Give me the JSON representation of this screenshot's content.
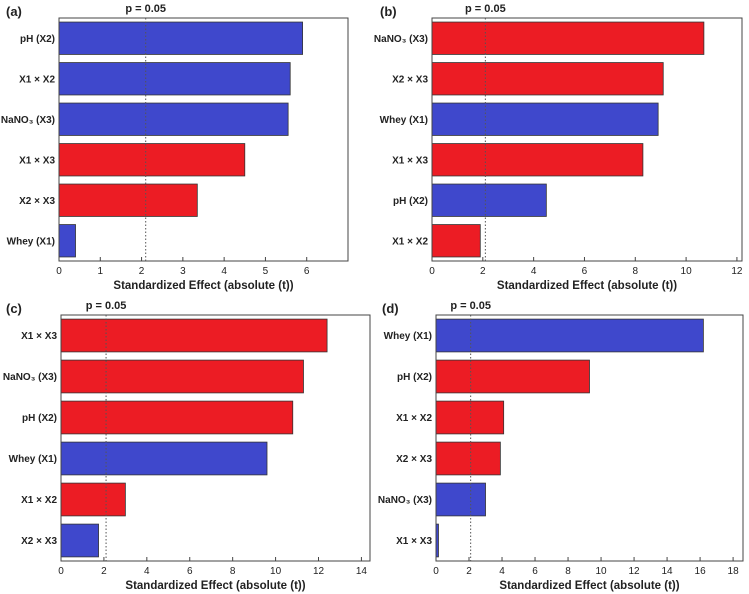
{
  "chart_data": [
    {
      "type": "bar",
      "orientation": "horizontal",
      "panel_label": "(a)",
      "categories": [
        "pH (X2)",
        "X1 × X2",
        "NaNO₃ (X3)",
        "X1 × X3",
        "X2 × X3",
        "Whey (X1)"
      ],
      "values": [
        5.9,
        5.6,
        5.55,
        4.5,
        3.35,
        0.4
      ],
      "colors": [
        "#3f48cc",
        "#3f48cc",
        "#3f48cc",
        "#ec1c24",
        "#ec1c24",
        "#3f48cc"
      ],
      "xlim": [
        0,
        7
      ],
      "xticks": [
        "0",
        "1",
        "2",
        "3",
        "4",
        "5",
        "6"
      ],
      "threshold_value": 2.1,
      "threshold_label": "p = 0.05",
      "xlabel": "Standardized Effect (absolute (t))"
    },
    {
      "type": "bar",
      "orientation": "horizontal",
      "panel_label": "(b)",
      "categories": [
        "NaNO₃ (X3)",
        "X2 × X3",
        "Whey (X1)",
        "X1 × X3",
        "pH (X2)",
        "X1 × X2"
      ],
      "values": [
        10.7,
        9.1,
        8.9,
        8.3,
        4.5,
        1.9
      ],
      "colors": [
        "#ec1c24",
        "#ec1c24",
        "#3f48cc",
        "#ec1c24",
        "#3f48cc",
        "#ec1c24"
      ],
      "xlim": [
        0,
        12.2
      ],
      "xticks": [
        "0",
        "2",
        "4",
        "6",
        "8",
        "10",
        "12"
      ],
      "threshold_value": 2.1,
      "threshold_label": "p = 0.05",
      "xlabel": "Standardized Effect (absolute (t))"
    },
    {
      "type": "bar",
      "orientation": "horizontal",
      "panel_label": "(c)",
      "categories": [
        "X1 × X3",
        "NaNO₃ (X3)",
        "pH (X2)",
        "Whey (X1)",
        "X1 × X2",
        "X2 × X3"
      ],
      "values": [
        12.4,
        11.3,
        10.8,
        9.6,
        3.0,
        1.75
      ],
      "colors": [
        "#ec1c24",
        "#ec1c24",
        "#ec1c24",
        "#3f48cc",
        "#ec1c24",
        "#3f48cc"
      ],
      "xlim": [
        0,
        14.4
      ],
      "xticks": [
        "0",
        "2",
        "4",
        "6",
        "8",
        "10",
        "12",
        "14"
      ],
      "threshold_value": 2.1,
      "threshold_label": "p = 0.05",
      "xlabel": "Standardized Effect (absolute (t))"
    },
    {
      "type": "bar",
      "orientation": "horizontal",
      "panel_label": "(d)",
      "categories": [
        "Whey (X1)",
        "pH (X2)",
        "X1 × X2",
        "X2 × X3",
        "NaNO₃ (X3)",
        "X1 × X3"
      ],
      "values": [
        16.2,
        9.3,
        4.1,
        3.9,
        3.0,
        0.15
      ],
      "colors": [
        "#3f48cc",
        "#ec1c24",
        "#ec1c24",
        "#ec1c24",
        "#3f48cc",
        "#3f48cc"
      ],
      "xlim": [
        0,
        18.6
      ],
      "xticks": [
        "0",
        "2",
        "4",
        "6",
        "8",
        "10",
        "12",
        "14",
        "16",
        "18"
      ],
      "threshold_value": 2.1,
      "threshold_label": "p = 0.05",
      "xlabel": "Standardized Effect (absolute (t))"
    }
  ]
}
